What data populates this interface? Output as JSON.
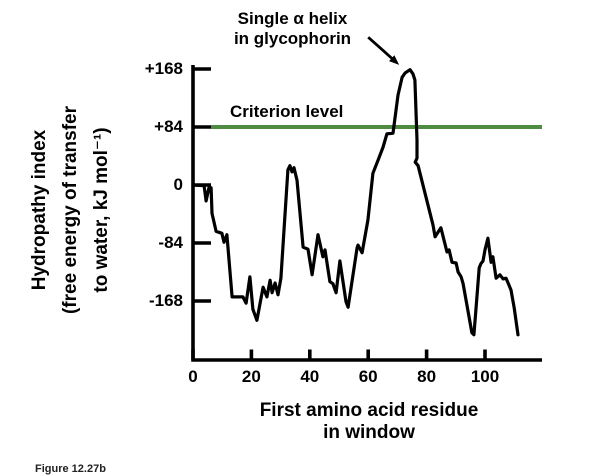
{
  "figure": {
    "caption": "Figure 12.27b",
    "background_color": "#ffffff",
    "line_color": "#000000"
  },
  "chart_data": {
    "type": "line",
    "title": "",
    "xlabel": "First amino acid residue in window",
    "xlabel_lines": [
      "First amino acid residue",
      "in window"
    ],
    "ylabel": "Hydropathy index (free energy of transfer to water, kJ mol⁻¹)",
    "ylabel_lines": [
      "Hydropathy index",
      "(free energy of transfer",
      "to water, kJ mol⁻¹)"
    ],
    "xlim": [
      0,
      120
    ],
    "ylim": [
      -253,
      172
    ],
    "grid": false,
    "legend": "none",
    "x_ticks": [
      0,
      20,
      40,
      60,
      80,
      100
    ],
    "x_tick_labels": [
      "0",
      "20",
      "40",
      "60",
      "80",
      "100"
    ],
    "y_ticks": [
      168,
      84,
      0,
      -84,
      -168
    ],
    "y_tick_labels": [
      "+168",
      "+84",
      "0",
      "-84",
      "-168"
    ],
    "criterion": {
      "label": "Criterion level",
      "value": 84,
      "color": "#4e8c42"
    },
    "annotation": {
      "lines": [
        "Single α helix",
        "in glycophorin"
      ],
      "arrow_from": [
        60.0,
        214
      ],
      "arrow_to": [
        70.6,
        174
      ]
    },
    "series": [
      {
        "name": "glycophorin hydropathy",
        "color": "#000000",
        "points": [
          [
            0.0,
            0
          ],
          [
            3.8,
            -1
          ],
          [
            4.5,
            -23
          ],
          [
            5.5,
            -3
          ],
          [
            6.2,
            -4
          ],
          [
            6.5,
            -41
          ],
          [
            7.9,
            -67
          ],
          [
            9.9,
            -70
          ],
          [
            10.6,
            -83
          ],
          [
            11.6,
            -72
          ],
          [
            13.4,
            -162
          ],
          [
            17.1,
            -162
          ],
          [
            18.2,
            -171
          ],
          [
            19.5,
            -133
          ],
          [
            20.5,
            -180
          ],
          [
            21.9,
            -196
          ],
          [
            24.0,
            -148
          ],
          [
            25.3,
            -162
          ],
          [
            26.4,
            -138
          ],
          [
            27.1,
            -156
          ],
          [
            28.1,
            -142
          ],
          [
            29.1,
            -159
          ],
          [
            30.1,
            -135
          ],
          [
            32.5,
            22
          ],
          [
            33.2,
            28
          ],
          [
            33.9,
            19
          ],
          [
            34.6,
            25
          ],
          [
            35.6,
            7
          ],
          [
            37.7,
            -90
          ],
          [
            39.4,
            -93
          ],
          [
            40.8,
            -130
          ],
          [
            42.8,
            -72
          ],
          [
            44.5,
            -104
          ],
          [
            45.2,
            -94
          ],
          [
            46.9,
            -140
          ],
          [
            47.9,
            -143
          ],
          [
            49.0,
            -156
          ],
          [
            50.3,
            -110
          ],
          [
            52.4,
            -169
          ],
          [
            53.1,
            -177
          ],
          [
            56.2,
            -91
          ],
          [
            56.5,
            -87
          ],
          [
            57.9,
            -98
          ],
          [
            59.9,
            -51
          ],
          [
            61.6,
            17
          ],
          [
            63.4,
            36
          ],
          [
            65.1,
            55
          ],
          [
            66.4,
            74
          ],
          [
            68.5,
            75
          ],
          [
            70.2,
            130
          ],
          [
            71.6,
            156
          ],
          [
            72.6,
            162
          ],
          [
            74.3,
            167
          ],
          [
            75.3,
            161
          ],
          [
            76.0,
            152
          ],
          [
            76.7,
            65
          ],
          [
            76.7,
            39
          ],
          [
            76.1,
            33
          ],
          [
            77.1,
            28
          ],
          [
            82.2,
            -58
          ],
          [
            82.9,
            -75
          ],
          [
            84.9,
            -62
          ],
          [
            87.0,
            -97
          ],
          [
            87.7,
            -94
          ],
          [
            88.7,
            -112
          ],
          [
            90.1,
            -113
          ],
          [
            90.8,
            -126
          ],
          [
            91.8,
            -133
          ],
          [
            92.5,
            -143
          ],
          [
            95.5,
            -214
          ],
          [
            96.2,
            -217
          ],
          [
            96.9,
            -181
          ],
          [
            98.0,
            -120
          ],
          [
            98.6,
            -114
          ],
          [
            99.3,
            -110
          ],
          [
            100.0,
            -94
          ],
          [
            101.0,
            -77
          ],
          [
            102.1,
            -112
          ],
          [
            102.7,
            -104
          ],
          [
            103.8,
            -135
          ],
          [
            105.1,
            -130
          ],
          [
            106.2,
            -136
          ],
          [
            107.2,
            -135
          ],
          [
            107.9,
            -142
          ],
          [
            108.9,
            -152
          ],
          [
            110.0,
            -178
          ],
          [
            111.3,
            -217
          ]
        ]
      }
    ]
  }
}
